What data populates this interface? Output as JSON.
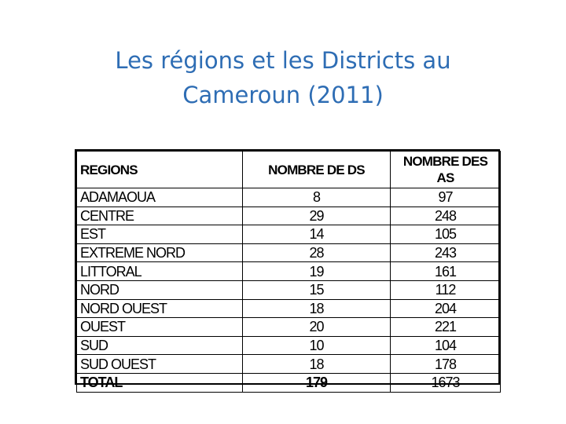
{
  "title": {
    "line1": "Les régions et les Districts au",
    "line2": "Cameroun (2011)"
  },
  "table": {
    "headers": {
      "region": "REGIONS",
      "ds": "NOMBRE DE DS",
      "as": "NOMBRE DES AS"
    },
    "rows": [
      {
        "region": "ADAMAOUA",
        "ds": "8",
        "as": "97"
      },
      {
        "region": "CENTRE",
        "ds": "29",
        "as": "248"
      },
      {
        "region": "EST",
        "ds": "14",
        "as": "105"
      },
      {
        "region": "EXTREME NORD",
        "ds": "28",
        "as": "243"
      },
      {
        "region": "LITTORAL",
        "ds": "19",
        "as": "161"
      },
      {
        "region": "NORD",
        "ds": "15",
        "as": "112"
      },
      {
        "region": "NORD OUEST",
        "ds": "18",
        "as": "204"
      },
      {
        "region": "OUEST",
        "ds": "20",
        "as": "221"
      },
      {
        "region": "SUD",
        "ds": "10",
        "as": "104"
      },
      {
        "region": "SUD OUEST",
        "ds": "18",
        "as": "178"
      }
    ],
    "total": {
      "region": "TOTAL",
      "ds": "179",
      "as": "1673"
    }
  },
  "colors": {
    "title": "#2e6db4",
    "text": "#000000",
    "background": "#ffffff"
  }
}
